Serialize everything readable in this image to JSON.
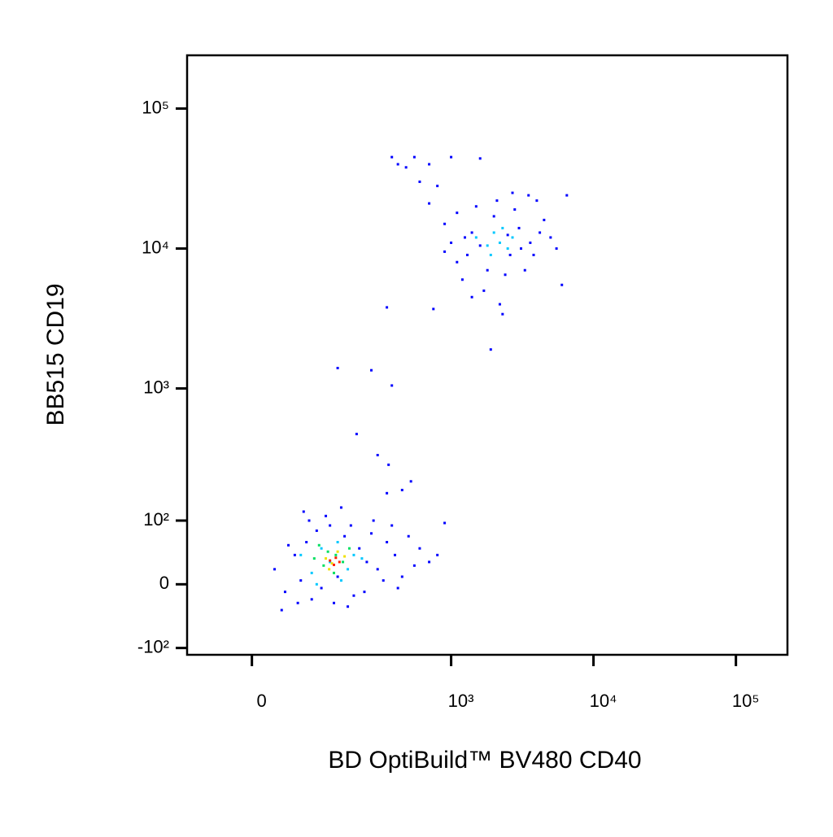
{
  "chart_data": {
    "type": "scatter",
    "x_label": "BD OptiBuild™ BV480 CD40",
    "y_label": "BB515 CD19",
    "xlim": [
      -100,
      230000
    ],
    "ylim": [
      -115,
      240000
    ],
    "xticks": [
      0,
      {
        "value": 1000,
        "label": "10³"
      },
      {
        "value": 10000,
        "label": "10⁴"
      },
      {
        "value": 100000,
        "label": "10⁵"
      }
    ],
    "yticks": [
      {
        "value": -100,
        "label": "-10²"
      },
      0,
      {
        "value": 100,
        "label": "10²"
      },
      {
        "value": 1000,
        "label": "10³"
      },
      {
        "value": 10000,
        "label": "10⁴"
      },
      {
        "value": 100000,
        "label": "10⁵"
      }
    ],
    "scale": "biexponential",
    "series": [
      {
        "color": "#0000ff",
        "x": [
          30,
          45,
          60,
          70,
          80,
          90,
          100,
          110,
          130,
          150,
          170,
          200,
          220,
          250,
          280,
          300,
          350,
          400,
          450,
          500,
          600,
          700,
          800,
          50,
          65,
          85,
          120,
          140,
          160,
          190,
          240,
          270,
          330,
          380,
          420,
          550,
          900,
          40,
          75,
          180,
          150,
          210,
          270,
          300,
          350,
          380,
          360,
          450,
          520,
          350,
          380,
          420,
          480,
          550,
          700,
          1000,
          1600,
          600,
          800,
          700,
          900,
          1000,
          1100,
          1200,
          1300,
          1400,
          1500,
          1700,
          1800,
          2000,
          2200,
          2400,
          2600,
          2800,
          3000,
          3300,
          3600,
          4000,
          4500,
          5000,
          6000,
          6500,
          1900,
          1400,
          750,
          2300,
          1250,
          3800,
          4200,
          1600,
          2100,
          2700,
          3500,
          5500,
          900,
          1100,
          2500,
          3100
        ],
        "y": [
          20,
          -10,
          40,
          5,
          60,
          -20,
          80,
          -5,
          90,
          10,
          70,
          -15,
          50,
          30,
          100,
          20,
          60,
          40,
          10,
          70,
          50,
          30,
          40,
          55,
          -25,
          100,
          110,
          -25,
          130,
          90,
          -10,
          75,
          5,
          90,
          -5,
          25,
          95,
          -35,
          120,
          -30,
          1400,
          470,
          1350,
          330,
          3800,
          1050,
          280,
          180,
          210,
          170,
          45000,
          40000,
          38000,
          45000,
          40000,
          45000,
          44000,
          30000,
          28000,
          21000,
          15000,
          11000,
          8000,
          6000,
          9000,
          13000,
          20000,
          5000,
          7000,
          17000,
          4000,
          6500,
          9000,
          19000,
          14000,
          7000,
          11000,
          22000,
          16000,
          12000,
          5500,
          24000,
          1900,
          4500,
          3700,
          3400,
          12000,
          9000,
          13000,
          10500,
          22000,
          25000,
          24000,
          10000,
          9500,
          18000,
          12500,
          10000
        ]
      },
      {
        "color": "#00c8ff",
        "x": [
          70,
          90,
          110,
          130,
          150,
          180,
          200,
          230,
          100,
          160,
          1500,
          1800,
          2000,
          2200,
          2500,
          2300,
          1900,
          2700
        ],
        "y": [
          40,
          15,
          50,
          30,
          60,
          20,
          40,
          35,
          0,
          5,
          12000,
          10500,
          13000,
          11000,
          10000,
          14000,
          9000,
          12000
        ]
      },
      {
        "color": "#00e060",
        "x": [
          95,
          115,
          125,
          145,
          165,
          185,
          140,
          105
        ],
        "y": [
          35,
          25,
          45,
          40,
          30,
          50,
          15,
          55
        ]
      },
      {
        "color": "#f0e000",
        "x": [
          120,
          135,
          150,
          170,
          128
        ],
        "y": [
          35,
          28,
          45,
          38,
          20
        ]
      },
      {
        "color": "#ff2000",
        "x": [
          130,
          145,
          140,
          155
        ],
        "y": [
          32,
          36,
          26,
          30
        ]
      }
    ]
  }
}
